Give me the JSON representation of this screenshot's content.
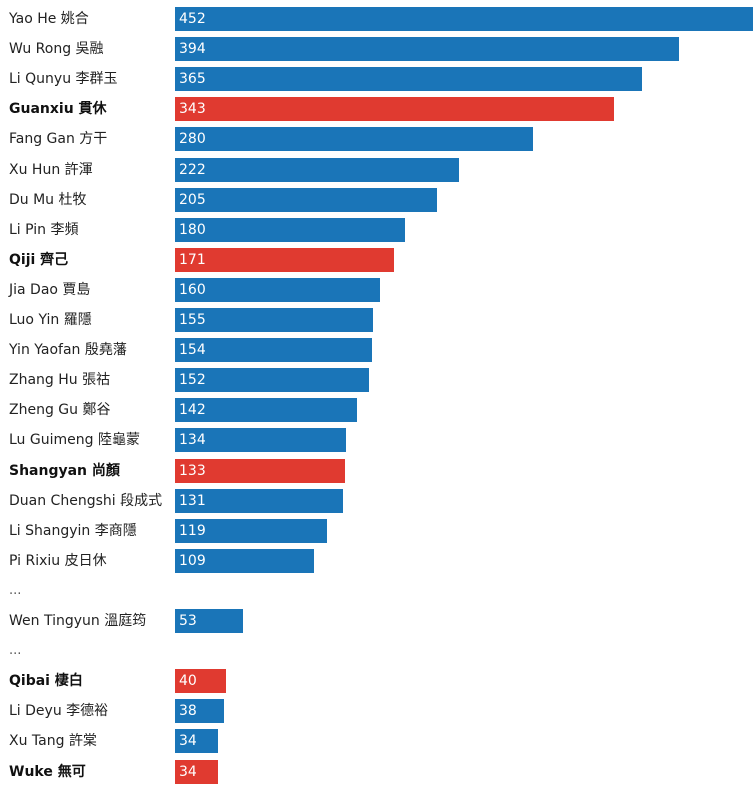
{
  "chart_data": {
    "type": "bar",
    "orientation": "horizontal",
    "title": "",
    "xlabel": "",
    "ylabel": "",
    "xlim": [
      0,
      452
    ],
    "grid": false,
    "colors": {
      "default": "#1a75b8",
      "highlight": "#e03a30"
    },
    "gap_marker": "...",
    "rows": [
      {
        "kind": "bar",
        "label": "Yao He 姚合",
        "value": 452,
        "highlight": false
      },
      {
        "kind": "bar",
        "label": "Wu Rong 吳融",
        "value": 394,
        "highlight": false
      },
      {
        "kind": "bar",
        "label": "Li Qunyu 李群玉",
        "value": 365,
        "highlight": false
      },
      {
        "kind": "bar",
        "label": "Guanxiu 貫休",
        "value": 343,
        "highlight": true
      },
      {
        "kind": "bar",
        "label": "Fang Gan 方干",
        "value": 280,
        "highlight": false
      },
      {
        "kind": "bar",
        "label": "Xu Hun 許渾",
        "value": 222,
        "highlight": false
      },
      {
        "kind": "bar",
        "label": "Du Mu 杜牧",
        "value": 205,
        "highlight": false
      },
      {
        "kind": "bar",
        "label": "Li Pin 李頻",
        "value": 180,
        "highlight": false
      },
      {
        "kind": "bar",
        "label": "Qiji 齊己",
        "value": 171,
        "highlight": true
      },
      {
        "kind": "bar",
        "label": "Jia Dao 賈島",
        "value": 160,
        "highlight": false
      },
      {
        "kind": "bar",
        "label": "Luo Yin 羅隱",
        "value": 155,
        "highlight": false
      },
      {
        "kind": "bar",
        "label": "Yin Yaofan 殷堯藩",
        "value": 154,
        "highlight": false
      },
      {
        "kind": "bar",
        "label": "Zhang Hu 張祜",
        "value": 152,
        "highlight": false
      },
      {
        "kind": "bar",
        "label": "Zheng Gu 鄭谷",
        "value": 142,
        "highlight": false
      },
      {
        "kind": "bar",
        "label": "Lu Guimeng 陸龜蒙",
        "value": 134,
        "highlight": false
      },
      {
        "kind": "bar",
        "label": "Shangyan 尚顏",
        "value": 133,
        "highlight": true
      },
      {
        "kind": "bar",
        "label": "Duan Chengshi 段成式",
        "value": 131,
        "highlight": false
      },
      {
        "kind": "bar",
        "label": "Li Shangyin 李商隱",
        "value": 119,
        "highlight": false
      },
      {
        "kind": "bar",
        "label": "Pi Rixiu 皮日休",
        "value": 109,
        "highlight": false
      },
      {
        "kind": "gap"
      },
      {
        "kind": "bar",
        "label": "Wen Tingyun 溫庭筠",
        "value": 53,
        "highlight": false
      },
      {
        "kind": "gap"
      },
      {
        "kind": "bar",
        "label": "Qibai 棲白",
        "value": 40,
        "highlight": true
      },
      {
        "kind": "bar",
        "label": "Li Deyu 李德裕",
        "value": 38,
        "highlight": false
      },
      {
        "kind": "bar",
        "label": "Xu Tang 許棠",
        "value": 34,
        "highlight": false
      },
      {
        "kind": "bar",
        "label": "Wuke 無可",
        "value": 34,
        "highlight": true
      }
    ]
  }
}
